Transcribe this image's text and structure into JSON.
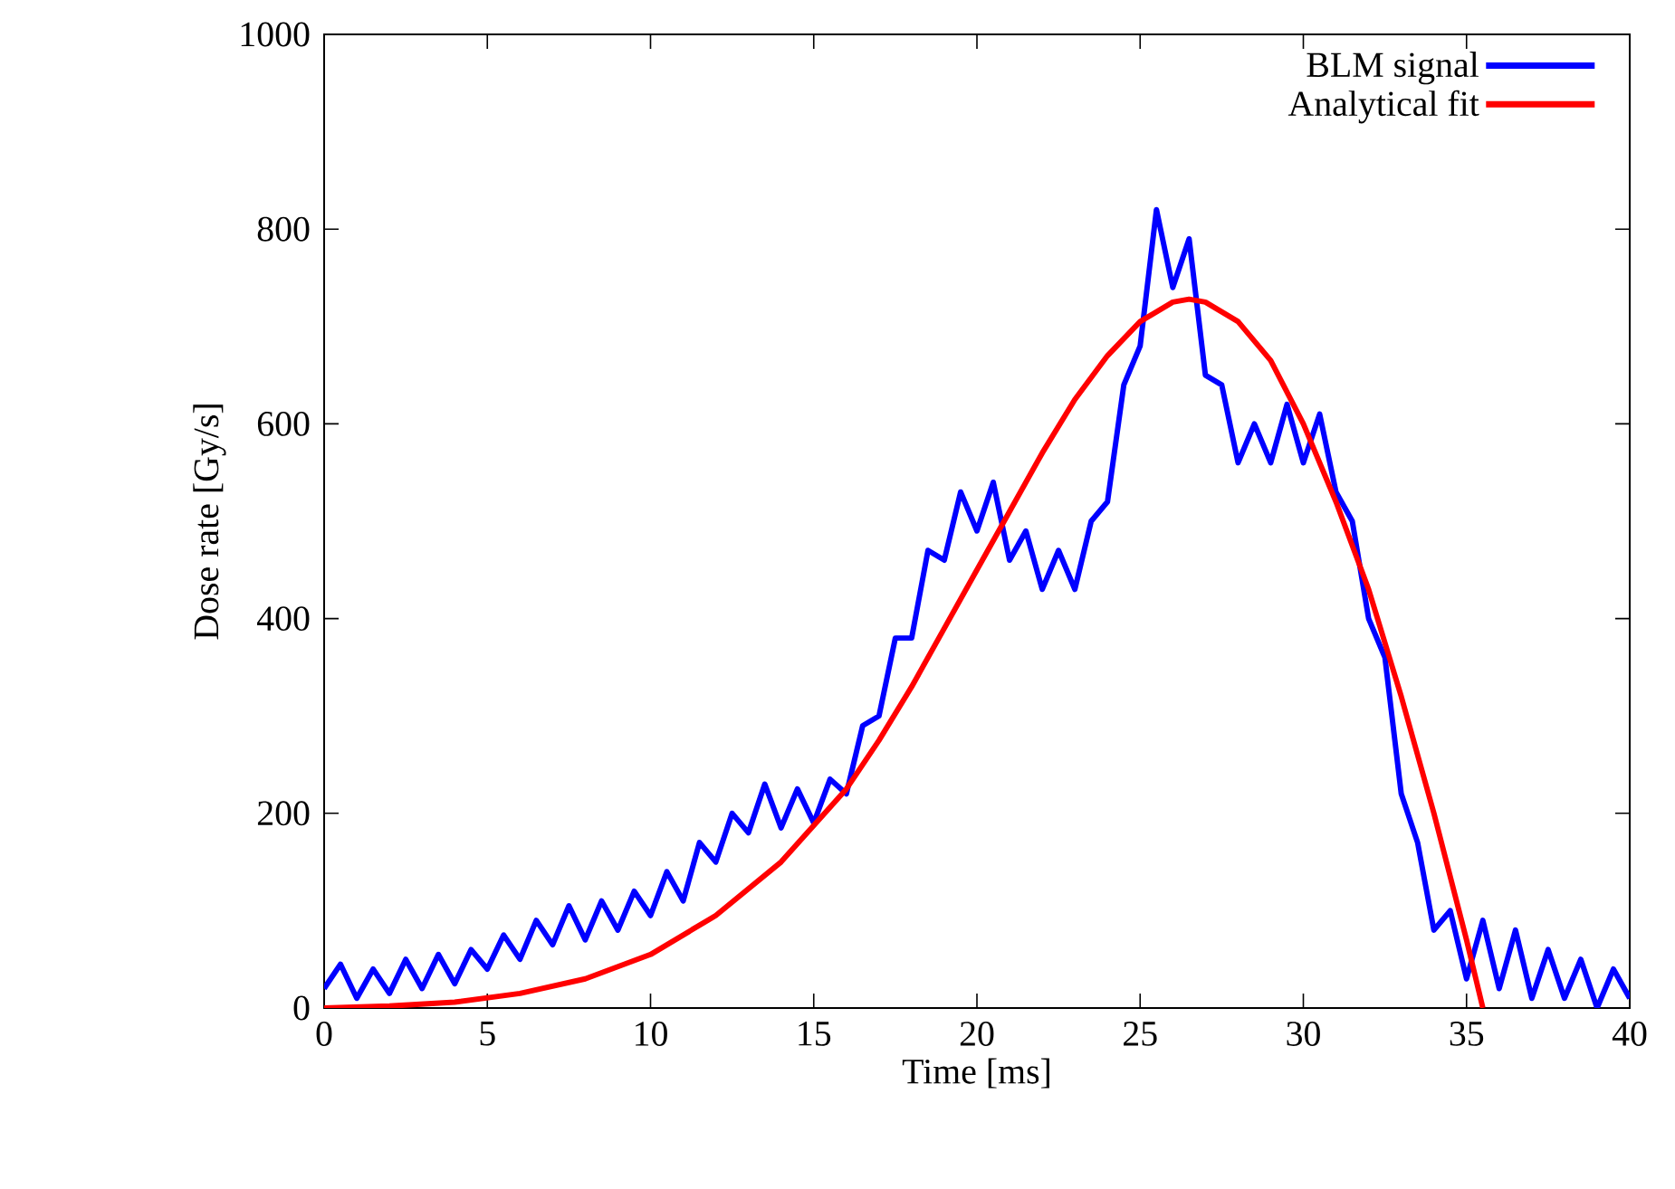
{
  "chart_data": {
    "type": "line",
    "xlabel": "Time [ms]",
    "ylabel": "Dose rate [Gy/s]",
    "xlim": [
      0,
      40
    ],
    "ylim": [
      0,
      1000
    ],
    "xticks": [
      0,
      5,
      10,
      15,
      20,
      25,
      30,
      35,
      40
    ],
    "yticks": [
      0,
      200,
      400,
      600,
      800,
      1000
    ],
    "legend": "top right",
    "series": [
      {
        "name": "BLM signal",
        "color": "#0000ff",
        "x": [
          0,
          0.5,
          1,
          1.5,
          2,
          2.5,
          3,
          3.5,
          4,
          4.5,
          5,
          5.5,
          6,
          6.5,
          7,
          7.5,
          8,
          8.5,
          9,
          9.5,
          10,
          10.5,
          11,
          11.5,
          12,
          12.5,
          13,
          13.5,
          14,
          14.5,
          15,
          15.5,
          16,
          16.5,
          17,
          17.5,
          18,
          18.5,
          19,
          19.5,
          20,
          20.5,
          21,
          21.5,
          22,
          22.5,
          23,
          23.5,
          24,
          24.5,
          25,
          25.5,
          26,
          26.5,
          27,
          27.5,
          28,
          28.5,
          29,
          29.5,
          30,
          30.5,
          31,
          31.5,
          32,
          32.5,
          33,
          33.5,
          34,
          34.5,
          35,
          35.5,
          36,
          36.5,
          37,
          37.5,
          38,
          38.5,
          39,
          39.5,
          40
        ],
        "values": [
          20,
          45,
          10,
          40,
          15,
          50,
          20,
          55,
          25,
          60,
          40,
          75,
          50,
          90,
          65,
          105,
          70,
          110,
          80,
          120,
          95,
          140,
          110,
          170,
          150,
          200,
          180,
          230,
          185,
          225,
          190,
          235,
          220,
          290,
          300,
          380,
          380,
          470,
          460,
          530,
          490,
          540,
          460,
          490,
          430,
          470,
          430,
          500,
          520,
          640,
          680,
          820,
          740,
          790,
          650,
          640,
          560,
          600,
          560,
          620,
          560,
          610,
          530,
          500,
          400,
          360,
          220,
          170,
          80,
          100,
          30,
          90,
          20,
          80,
          10,
          60,
          10,
          50,
          0,
          40,
          10
        ]
      },
      {
        "name": "Analytical fit",
        "color": "#ff0000",
        "x": [
          0,
          2,
          4,
          6,
          8,
          10,
          12,
          14,
          16,
          17,
          18,
          19,
          20,
          21,
          22,
          23,
          24,
          25,
          26,
          26.5,
          27,
          28,
          29,
          30,
          31,
          32,
          33,
          34,
          35,
          35.5
        ],
        "values": [
          0,
          2,
          6,
          15,
          30,
          55,
          95,
          150,
          225,
          275,
          330,
          390,
          450,
          510,
          570,
          625,
          670,
          705,
          725,
          728,
          725,
          705,
          665,
          600,
          520,
          430,
          320,
          200,
          70,
          0
        ]
      }
    ]
  }
}
